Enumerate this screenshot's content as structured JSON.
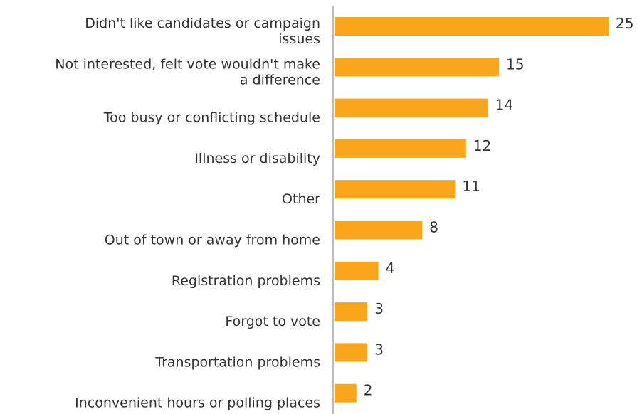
{
  "chart_data": {
    "type": "bar",
    "orientation": "horizontal",
    "title": "",
    "xlabel": "",
    "ylabel": "",
    "categories": [
      "Didn't like candidates or campaign issues",
      "Not interested, felt vote wouldn't make a difference",
      "Too busy or conflicting schedule",
      "Illness or disability",
      "Other",
      "Out of town or away from home",
      "Registration problems",
      "Forgot to vote",
      "Transportation problems",
      "Inconvenient hours or polling places"
    ],
    "label_lines": [
      [
        "Didn't like candidates or campaign",
        "issues"
      ],
      [
        "Not interested, felt vote wouldn't make",
        "a difference"
      ],
      [
        "Too busy or conflicting schedule"
      ],
      [
        "Illness or disability"
      ],
      [
        "Other"
      ],
      [
        "Out of town or away from home"
      ],
      [
        "Registration problems"
      ],
      [
        "Forgot to vote"
      ],
      [
        "Transportation problems"
      ],
      [
        "Inconvenient hours or polling places"
      ]
    ],
    "values": [
      25,
      15,
      14,
      12,
      11,
      8,
      4,
      3,
      3,
      2
    ],
    "value_labels": [
      "25",
      "15",
      "14",
      "12",
      "11",
      "8",
      "4",
      "3",
      "3",
      "2"
    ],
    "xlim": [
      0,
      25
    ],
    "grid": false,
    "legend": "none",
    "colors": {
      "bar": "#F9A61D",
      "axis": "#BBBBBB",
      "text": "#333333"
    }
  }
}
